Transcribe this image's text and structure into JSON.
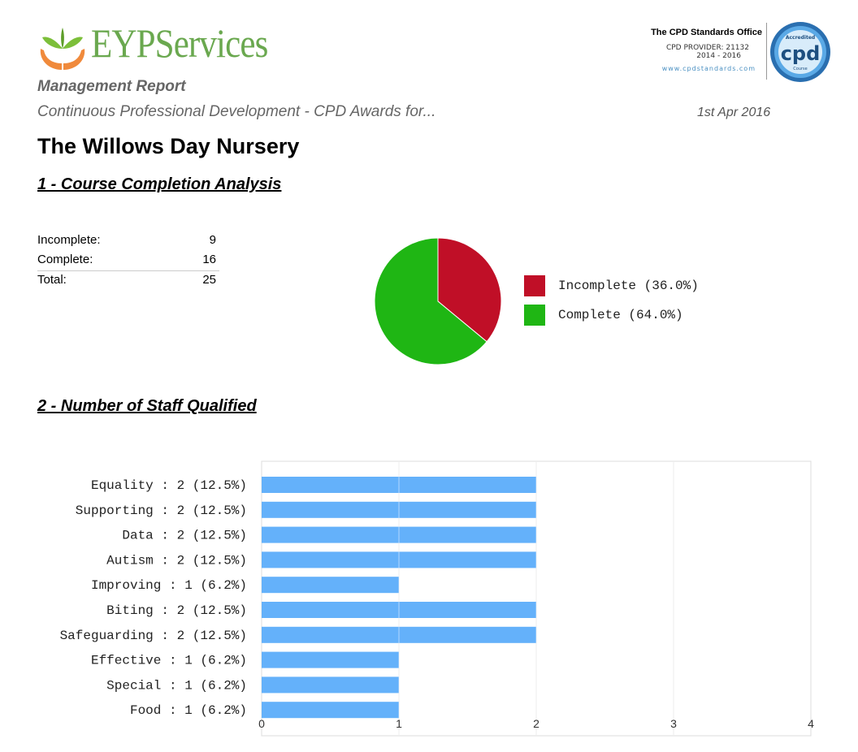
{
  "brand": {
    "name": "EYPServices"
  },
  "accreditation": {
    "office": "The CPD Standards Office",
    "provider": "CPD PROVIDER: 21132",
    "years": "2014 - 2016",
    "website": "www.cpdstandards.com",
    "badge_top": "Accredited",
    "badge_main": "cpd",
    "badge_bottom": "Course"
  },
  "report": {
    "type": "Management Report",
    "subtitle": "Continuous Professional Development - CPD Awards for...",
    "date": "1st Apr 2016",
    "organisation": "The Willows Day Nursery"
  },
  "sections": {
    "completion_title": "1 - Course Completion Analysis",
    "staff_title": "2 - Number of Staff Qualified"
  },
  "summary": [
    {
      "label": "Incomplete:",
      "value": "9"
    },
    {
      "label": "Complete:",
      "value": "16"
    },
    {
      "label": "Total:",
      "value": "25"
    }
  ],
  "colors": {
    "incomplete": "#c00f27",
    "complete": "#1fb614",
    "bar": "#64b1fa",
    "brand_green": "#6aa84f"
  },
  "chart_data": [
    {
      "type": "pie",
      "title": "Course Completion Analysis",
      "labels": [
        "Incomplete",
        "Complete"
      ],
      "values": [
        9,
        16
      ],
      "legend": [
        "Incomplete (36.0%)",
        "Complete (64.0%)"
      ]
    },
    {
      "type": "bar",
      "orientation": "horizontal",
      "title": "Number of Staff Qualified",
      "categories": [
        "Equality : 2 (12.5%)",
        "Supporting : 2 (12.5%)",
        "Data : 2 (12.5%)",
        "Autism : 2 (12.5%)",
        "Improving : 1 (6.2%)",
        "Biting : 2 (12.5%)",
        "Safeguarding : 2 (12.5%)",
        "Effective : 1 (6.2%)",
        "Special : 1 (6.2%)",
        "Food : 1 (6.2%)"
      ],
      "values": [
        2,
        2,
        2,
        2,
        1,
        2,
        2,
        1,
        1,
        1
      ],
      "xlim": [
        0,
        4
      ],
      "xticks": [
        "0",
        "1",
        "2",
        "3",
        "4"
      ],
      "grid": true
    }
  ]
}
